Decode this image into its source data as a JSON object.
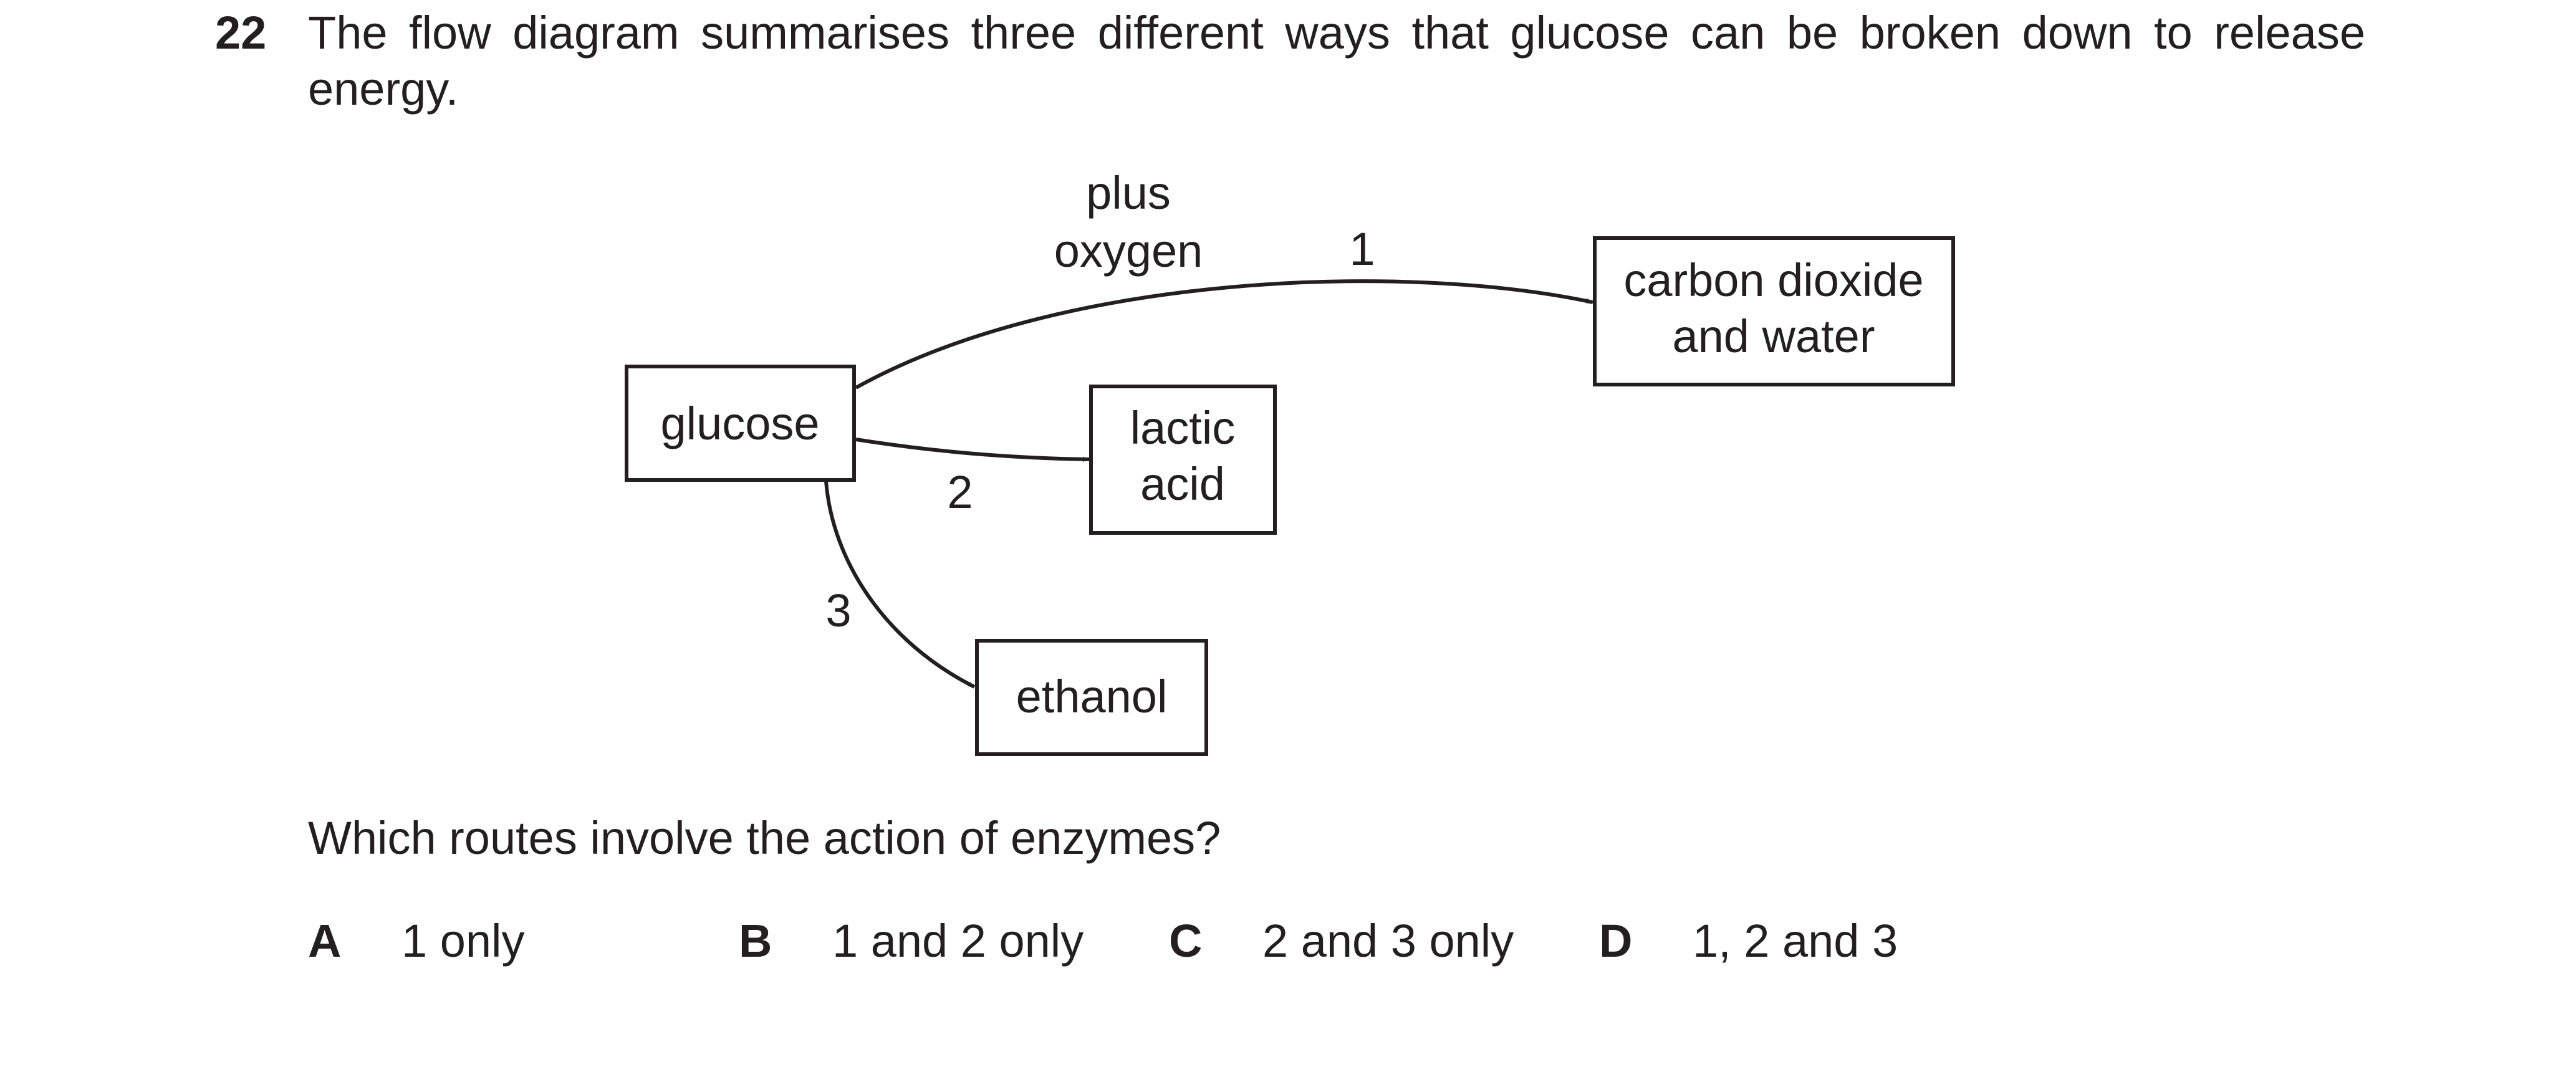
{
  "question": {
    "number": "22",
    "stem": "The flow diagram summarises three different ways that glucose can be broken down to release energy.",
    "prompt": "Which routes involve the action of enzymes?"
  },
  "diagram": {
    "boxes": {
      "glucose": "glucose",
      "lactic_line1": "lactic",
      "lactic_line2": "acid",
      "co2_line1": "carbon dioxide",
      "co2_line2": "and water",
      "ethanol": "ethanol"
    },
    "labels": {
      "oxygen_line1": "plus",
      "oxygen_line2": "oxygen",
      "route1": "1",
      "route2": "2",
      "route3": "3"
    }
  },
  "options": [
    {
      "letter": "A",
      "text": "1 only"
    },
    {
      "letter": "B",
      "text": "1 and 2 only"
    },
    {
      "letter": "C",
      "text": "2 and 3 only"
    },
    {
      "letter": "D",
      "text": "1, 2 and 3"
    }
  ]
}
